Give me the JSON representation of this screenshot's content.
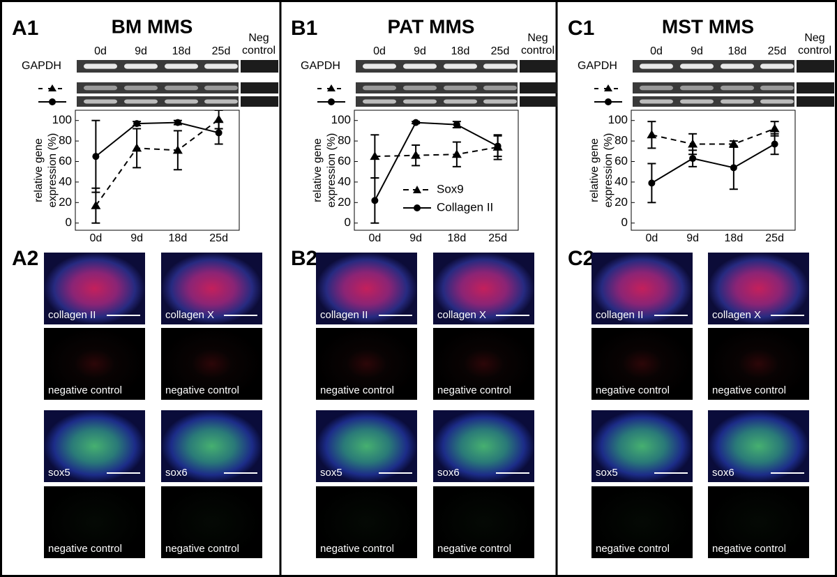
{
  "chart_data": [
    {
      "type": "line",
      "categories": [
        "0d",
        "9d",
        "18d",
        "25d"
      ],
      "ylabel": [
        "relative gene",
        "expression (%)"
      ],
      "ylim": [
        -7,
        110
      ],
      "yticks": [
        0,
        20,
        40,
        60,
        80,
        100
      ],
      "series": [
        {
          "color": "#000000",
          "line_style": "dashed",
          "marker": "triangle",
          "values": [
            17,
            73,
            71,
            101
          ],
          "errors": [
            17,
            19,
            19,
            9
          ]
        },
        {
          "color": "#000000",
          "line_style": "solid",
          "marker": "circle",
          "values": [
            65,
            97,
            98,
            88
          ],
          "errors": [
            35,
            2,
            2,
            11
          ]
        }
      ]
    },
    {
      "type": "line",
      "categories": [
        "0d",
        "9d",
        "18d",
        "25d"
      ],
      "ylabel": [
        "relative gene",
        "expression (%)"
      ],
      "ylim": [
        -7,
        110
      ],
      "yticks": [
        0,
        20,
        40,
        60,
        80,
        100
      ],
      "legend": "center right",
      "series": [
        {
          "name": "Sox9",
          "color": "#000000",
          "line_style": "dashed",
          "marker": "triangle",
          "values": [
            65,
            66,
            67,
            74
          ],
          "errors": [
            21,
            10,
            12,
            12
          ]
        },
        {
          "name": "Collagen II",
          "color": "#000000",
          "line_style": "solid",
          "marker": "circle",
          "values": [
            22,
            98,
            96,
            75
          ],
          "errors": [
            22,
            1,
            3,
            10
          ]
        }
      ]
    },
    {
      "type": "line",
      "categories": [
        "0d",
        "9d",
        "18d",
        "25d"
      ],
      "ylabel": [
        "relative gene",
        "expression (%)"
      ],
      "ylim": [
        -7,
        110
      ],
      "yticks": [
        0,
        20,
        40,
        60,
        80,
        100
      ],
      "series": [
        {
          "color": "#000000",
          "line_style": "dashed",
          "marker": "triangle",
          "values": [
            86,
            77,
            77,
            92
          ],
          "errors": [
            13,
            10,
            3,
            7
          ]
        },
        {
          "color": "#000000",
          "line_style": "solid",
          "marker": "circle",
          "values": [
            39,
            63,
            54,
            77
          ],
          "errors": [
            19,
            8,
            21,
            10
          ]
        }
      ]
    }
  ],
  "panels": [
    {
      "label1": "A1",
      "title": "BM MMS",
      "label2": "A2",
      "lanes": [
        "0d",
        "9d",
        "18d",
        "25d",
        "Neg control"
      ],
      "gel_row": "GAPDH",
      "images": [
        "collagen II",
        "collagen X",
        "negative control",
        "negative control",
        "sox5",
        "sox6",
        "negative control",
        "negative control"
      ]
    },
    {
      "label1": "B1",
      "title": "PAT MMS",
      "label2": "B2",
      "lanes": [
        "0d",
        "9d",
        "18d",
        "25d",
        "Neg control"
      ],
      "gel_row": "GAPDH",
      "images": [
        "collagen II",
        "collagen X",
        "negative control",
        "negative control",
        "sox5",
        "sox6",
        "negative control",
        "negative control"
      ]
    },
    {
      "label1": "C1",
      "title": "MST MMS",
      "label2": "C2",
      "lanes": [
        "0d",
        "9d",
        "18d",
        "25d",
        "Neg control"
      ],
      "gel_row": "GAPDH",
      "images": [
        "collagen II",
        "collagen X",
        "negative control",
        "negative control",
        "sox5",
        "sox6",
        "negative control",
        "negative control"
      ]
    }
  ]
}
